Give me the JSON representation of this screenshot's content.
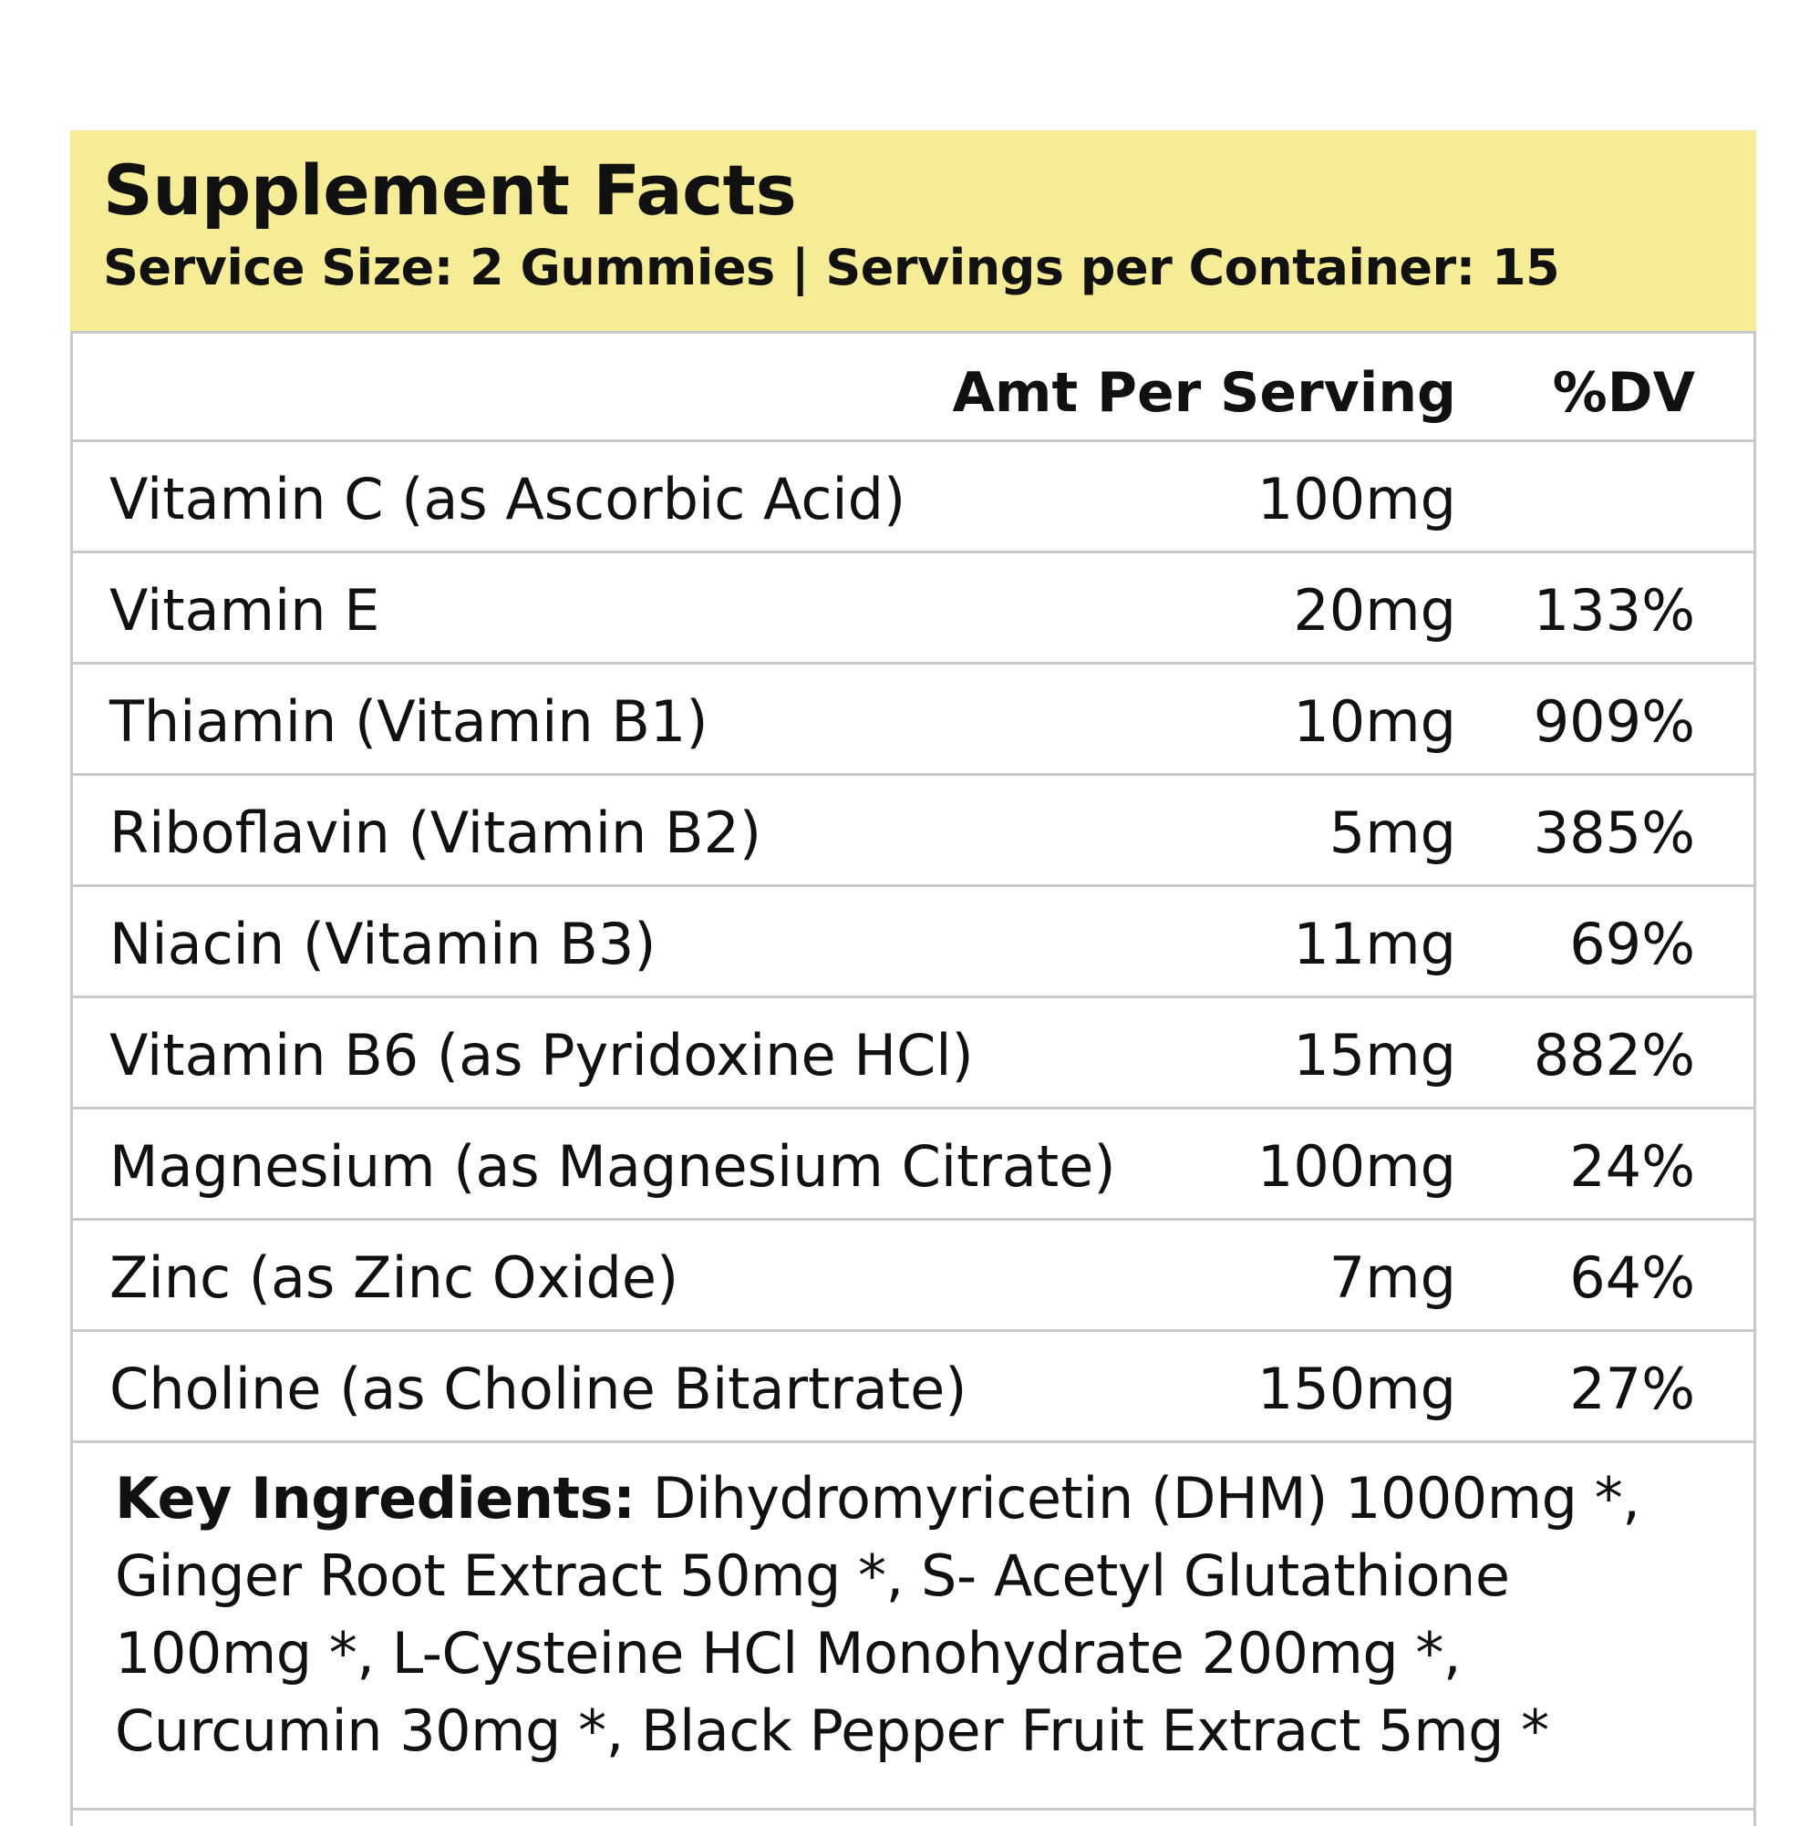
{
  "colors": {
    "header_background": "#f5ec95",
    "rule": "#c9c9c9",
    "text": "#111111"
  },
  "facts": {
    "title": "Supplement Facts",
    "serving_line": "Service Size: 2 Gummies | Servings per Container: 15"
  },
  "table": {
    "columns": {
      "amount": "Amt Per Serving",
      "dv": "%DV"
    },
    "rows": [
      {
        "name": "Vitamin C (as Ascorbic Acid)",
        "amount": "100mg",
        "dv": ""
      },
      {
        "name": "Vitamin E",
        "amount": "20mg",
        "dv": "133%"
      },
      {
        "name": "Thiamin (Vitamin B1)",
        "amount": "10mg",
        "dv": "909%"
      },
      {
        "name": "Riboflavin (Vitamin B2)",
        "amount": "5mg",
        "dv": "385%"
      },
      {
        "name": "Niacin (Vitamin B3)",
        "amount": "11mg",
        "dv": "69%"
      },
      {
        "name": "Vitamin B6 (as Pyridoxine HCl)",
        "amount": "15mg",
        "dv": "882%"
      },
      {
        "name": "Magnesium (as Magnesium Citrate)",
        "amount": "100mg",
        "dv": "24%"
      },
      {
        "name": "Zinc (as Zinc Oxide)",
        "amount": "7mg",
        "dv": "64%"
      },
      {
        "name": "Choline (as Choline Bitartrate)",
        "amount": "150mg",
        "dv": "27%"
      }
    ]
  },
  "key_ingredients": {
    "label": "Key Ingredients:",
    "text": " Dihydromyricetin (DHM) 1000mg *, Ginger Root Extract 50mg *, S- Acetyl Glutathione 100mg *, L-Cysteine HCl Monohydrate 200mg *, Curcumin 30mg *, Black Pepper Fruit Extract 5mg *"
  }
}
